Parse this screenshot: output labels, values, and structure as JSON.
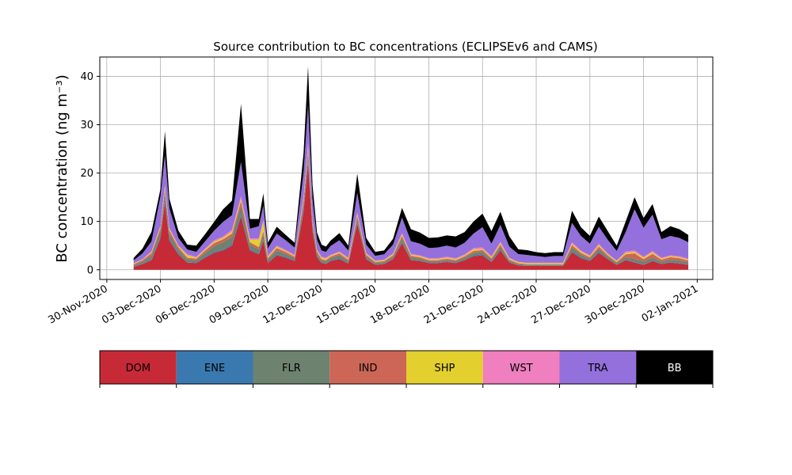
{
  "chart_data": {
    "type": "area",
    "title": "Source contribution to BC concentrations (ECLIPSEv6 and CAMS)",
    "ylabel": "BC concentration (ng m⁻³)",
    "xlabel": "",
    "stacked": true,
    "grid": true,
    "xlim": [
      "2020-11-30",
      "2021-01-02"
    ],
    "ylim": [
      -2,
      44
    ],
    "x_ticks": [
      "30-Nov-2020",
      "03-Dec-2020",
      "06-Dec-2020",
      "09-Dec-2020",
      "12-Dec-2020",
      "15-Dec-2020",
      "18-Dec-2020",
      "21-Dec-2020",
      "24-Dec-2020",
      "27-Dec-2020",
      "30-Dec-2020",
      "02-Jan-2021"
    ],
    "y_ticks": [
      "0",
      "10",
      "20",
      "30",
      "40"
    ],
    "x": [
      "2020-12-01 12:00",
      "2020-12-02 00:00",
      "2020-12-02 12:00",
      "2020-12-03 00:00",
      "2020-12-03 06:00",
      "2020-12-03 12:00",
      "2020-12-04 00:00",
      "2020-12-04 12:00",
      "2020-12-05 00:00",
      "2020-12-05 12:00",
      "2020-12-06 00:00",
      "2020-12-06 12:00",
      "2020-12-07 00:00",
      "2020-12-07 12:00",
      "2020-12-08 00:00",
      "2020-12-08 12:00",
      "2020-12-08 18:00",
      "2020-12-09 00:00",
      "2020-12-09 12:00",
      "2020-12-10 00:00",
      "2020-12-10 12:00",
      "2020-12-11 00:00",
      "2020-12-11 06:00",
      "2020-12-11 12:00",
      "2020-12-11 18:00",
      "2020-12-12 00:00",
      "2020-12-12 06:00",
      "2020-12-12 12:00",
      "2020-12-13 00:00",
      "2020-12-13 12:00",
      "2020-12-14 00:00",
      "2020-12-14 12:00",
      "2020-12-15 00:00",
      "2020-12-15 12:00",
      "2020-12-16 00:00",
      "2020-12-16 12:00",
      "2020-12-17 00:00",
      "2020-12-17 12:00",
      "2020-12-18 00:00",
      "2020-12-18 12:00",
      "2020-12-19 00:00",
      "2020-12-19 12:00",
      "2020-12-20 00:00",
      "2020-12-20 12:00",
      "2020-12-21 00:00",
      "2020-12-21 12:00",
      "2020-12-22 00:00",
      "2020-12-22 12:00",
      "2020-12-23 00:00",
      "2020-12-23 12:00",
      "2020-12-24 00:00",
      "2020-12-24 12:00",
      "2020-12-25 00:00",
      "2020-12-25 12:00",
      "2020-12-26 00:00",
      "2020-12-26 12:00",
      "2020-12-27 00:00",
      "2020-12-27 12:00",
      "2020-12-28 00:00",
      "2020-12-28 12:00",
      "2020-12-29 00:00",
      "2020-12-29 12:00",
      "2020-12-30 00:00",
      "2020-12-30 12:00",
      "2020-12-31 00:00",
      "2020-12-31 12:00",
      "2021-01-01 00:00",
      "2021-01-01 12:00"
    ],
    "series": [
      {
        "name": "DOM",
        "color": "#c62a36",
        "values": [
          0.6,
          1.2,
          2.0,
          6.5,
          14.0,
          6.0,
          3.2,
          1.5,
          1.4,
          2.5,
          3.5,
          4.0,
          5.0,
          11.0,
          4.0,
          3.2,
          6.0,
          1.4,
          3.0,
          2.5,
          1.8,
          12.0,
          22.0,
          8.0,
          2.6,
          1.4,
          1.2,
          1.8,
          2.2,
          1.3,
          9.5,
          2.2,
          1.0,
          1.2,
          2.2,
          5.5,
          2.0,
          1.8,
          1.4,
          1.4,
          1.6,
          1.4,
          2.0,
          2.8,
          3.0,
          1.6,
          4.0,
          1.5,
          0.9,
          0.8,
          0.8,
          0.8,
          0.8,
          0.8,
          3.6,
          2.4,
          1.8,
          3.5,
          2.2,
          1.0,
          2.0,
          1.5,
          1.0,
          1.8,
          1.2,
          1.5,
          1.3,
          1.0
        ]
      },
      {
        "name": "ENE",
        "color": "#3a78b0",
        "values": [
          0.05,
          0.1,
          0.15,
          0.3,
          0.4,
          0.3,
          0.2,
          0.1,
          0.1,
          0.2,
          0.2,
          0.2,
          0.3,
          0.4,
          0.2,
          0.2,
          0.3,
          0.1,
          0.2,
          0.2,
          0.1,
          0.4,
          0.5,
          0.3,
          0.2,
          0.1,
          0.1,
          0.1,
          0.2,
          0.1,
          0.3,
          0.1,
          0.1,
          0.1,
          0.1,
          0.2,
          0.1,
          0.1,
          0.1,
          0.1,
          0.1,
          0.1,
          0.1,
          0.2,
          0.2,
          0.1,
          0.2,
          0.1,
          0.05,
          0.05,
          0.05,
          0.05,
          0.05,
          0.05,
          0.2,
          0.2,
          0.1,
          0.2,
          0.1,
          0.1,
          0.1,
          0.1,
          0.1,
          0.1,
          0.1,
          0.1,
          0.1,
          0.1
        ]
      },
      {
        "name": "FLR",
        "color": "#6e8270",
        "values": [
          0.3,
          0.4,
          0.8,
          1.2,
          1.5,
          1.2,
          0.8,
          0.6,
          0.5,
          0.8,
          1.2,
          1.5,
          1.5,
          1.8,
          1.0,
          0.8,
          1.0,
          0.6,
          0.8,
          0.6,
          0.5,
          1.2,
          1.5,
          1.0,
          0.6,
          0.4,
          0.4,
          0.5,
          0.6,
          0.4,
          0.8,
          0.5,
          0.3,
          0.3,
          0.4,
          0.8,
          0.5,
          0.4,
          0.3,
          0.3,
          0.3,
          0.3,
          0.4,
          0.5,
          0.5,
          0.4,
          0.6,
          0.3,
          0.2,
          0.2,
          0.2,
          0.2,
          0.2,
          0.2,
          0.8,
          0.5,
          0.4,
          0.6,
          0.4,
          0.3,
          0.5,
          0.6,
          0.6,
          0.6,
          0.4,
          0.5,
          0.5,
          0.4
        ]
      },
      {
        "name": "IND",
        "color": "#cc6656",
        "values": [
          0.2,
          0.3,
          0.5,
          0.6,
          0.8,
          0.6,
          0.5,
          0.3,
          0.3,
          0.5,
          0.6,
          0.6,
          0.7,
          1.0,
          0.5,
          0.5,
          0.7,
          0.3,
          0.5,
          0.4,
          0.3,
          0.8,
          1.0,
          0.6,
          0.4,
          0.3,
          0.3,
          0.3,
          0.4,
          0.3,
          0.6,
          0.3,
          0.2,
          0.2,
          0.3,
          0.5,
          0.3,
          0.3,
          0.2,
          0.2,
          0.3,
          0.2,
          0.3,
          0.4,
          0.4,
          0.3,
          0.4,
          0.2,
          0.2,
          0.1,
          0.1,
          0.1,
          0.1,
          0.1,
          0.5,
          0.4,
          0.3,
          0.5,
          0.3,
          0.2,
          0.6,
          1.2,
          0.5,
          0.8,
          0.4,
          0.5,
          0.5,
          0.4
        ]
      },
      {
        "name": "SHP",
        "color": "#e3cf2e",
        "values": [
          0.1,
          0.1,
          0.2,
          0.3,
          0.5,
          0.3,
          0.2,
          0.5,
          0.2,
          0.2,
          0.3,
          0.3,
          0.4,
          0.5,
          0.5,
          1.5,
          2.0,
          0.3,
          0.3,
          0.2,
          0.2,
          0.4,
          0.5,
          0.3,
          0.2,
          0.3,
          0.3,
          0.2,
          0.2,
          0.2,
          0.3,
          0.2,
          0.2,
          0.2,
          0.2,
          0.3,
          0.2,
          0.2,
          0.2,
          0.2,
          0.2,
          0.2,
          0.2,
          0.3,
          0.2,
          0.2,
          0.3,
          0.2,
          0.2,
          0.2,
          0.2,
          0.2,
          0.2,
          0.2,
          0.3,
          0.3,
          0.2,
          0.3,
          0.2,
          0.2,
          0.3,
          0.3,
          0.3,
          0.3,
          0.2,
          0.2,
          0.2,
          0.2
        ]
      },
      {
        "name": "WST",
        "color": "#ef7fbe",
        "values": [
          0.1,
          0.1,
          0.2,
          0.3,
          0.5,
          0.3,
          0.2,
          0.2,
          0.2,
          0.2,
          0.3,
          0.3,
          0.4,
          0.6,
          0.3,
          0.3,
          0.3,
          0.2,
          0.2,
          0.2,
          0.2,
          0.4,
          0.6,
          0.3,
          0.2,
          0.2,
          0.2,
          0.2,
          0.2,
          0.2,
          0.4,
          0.2,
          0.1,
          0.1,
          0.2,
          0.3,
          0.2,
          0.2,
          0.2,
          0.2,
          0.2,
          0.2,
          0.2,
          0.3,
          0.3,
          0.2,
          0.3,
          0.2,
          0.1,
          0.1,
          0.1,
          0.1,
          0.1,
          0.1,
          0.3,
          0.2,
          0.2,
          0.3,
          0.2,
          0.1,
          0.3,
          0.3,
          0.2,
          0.3,
          0.2,
          0.2,
          0.2,
          0.2
        ]
      },
      {
        "name": "TRA",
        "color": "#9370db",
        "values": [
          0.6,
          1.2,
          2.0,
          6.0,
          6.0,
          4.0,
          1.5,
          1.0,
          1.0,
          1.5,
          2.0,
          3.0,
          3.0,
          7.0,
          2.0,
          2.5,
          3.0,
          1.5,
          2.5,
          2.0,
          1.5,
          5.0,
          8.0,
          4.0,
          2.0,
          1.3,
          1.2,
          1.8,
          2.3,
          1.5,
          4.0,
          1.7,
          1.0,
          1.1,
          1.8,
          3.2,
          2.6,
          2.4,
          2.1,
          2.2,
          2.3,
          2.2,
          2.4,
          3.0,
          4.2,
          2.6,
          3.5,
          2.3,
          1.6,
          1.6,
          1.4,
          1.2,
          1.4,
          1.4,
          4.0,
          3.0,
          2.4,
          3.5,
          2.8,
          2.0,
          4.0,
          8.5,
          6.0,
          7.5,
          3.8,
          4.0,
          3.8,
          3.4
        ]
      },
      {
        "name": "BB",
        "color": "#000000",
        "values": [
          0.5,
          1.0,
          2.0,
          1.5,
          5.0,
          2.0,
          1.5,
          1.0,
          1.3,
          1.5,
          1.8,
          2.6,
          3.0,
          12.0,
          2.0,
          1.5,
          2.5,
          1.2,
          1.4,
          1.1,
          1.0,
          4.0,
          8.0,
          3.0,
          1.5,
          1.2,
          1.1,
          1.1,
          1.5,
          1.0,
          4.0,
          1.4,
          0.8,
          0.8,
          1.2,
          2.0,
          2.5,
          2.3,
          2.1,
          2.1,
          2.1,
          2.3,
          2.2,
          2.5,
          2.8,
          2.6,
          2.7,
          2.1,
          1.0,
          1.0,
          0.8,
          0.8,
          0.8,
          0.8,
          2.5,
          1.8,
          1.6,
          2.1,
          1.8,
          1.1,
          2.2,
          2.5,
          2.0,
          2.2,
          1.5,
          2.0,
          1.8,
          1.5
        ]
      }
    ],
    "legend": [
      "DOM",
      "ENE",
      "FLR",
      "IND",
      "SHP",
      "WST",
      "TRA",
      "BB"
    ],
    "legend_placement": "bottom"
  }
}
